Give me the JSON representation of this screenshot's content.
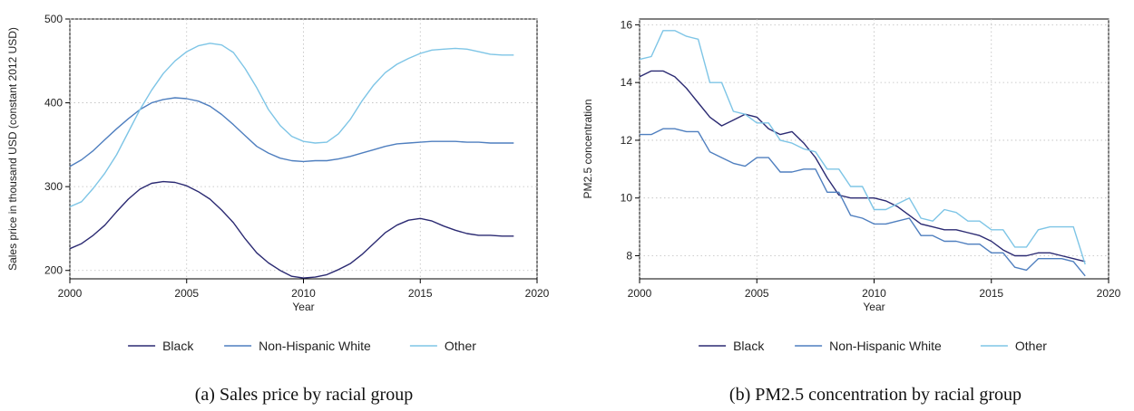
{
  "chart_data": [
    {
      "type": "line",
      "caption": "(a) Sales price by racial group",
      "xlabel": "Year",
      "ylabel": "Sales price in thousand USD (constant 2012 USD)",
      "xlim": [
        2000,
        2020
      ],
      "ylim": [
        190,
        500
      ],
      "xticks": [
        2000,
        2005,
        2010,
        2015,
        2020
      ],
      "yticks": [
        200,
        300,
        400,
        500
      ],
      "grid": true,
      "legend_position": "bottom",
      "series": [
        {
          "name": "Black",
          "color": "#2b2a72",
          "x": [
            2000,
            2000.5,
            2001,
            2001.5,
            2002,
            2002.5,
            2003,
            2003.5,
            2004,
            2004.5,
            2005,
            2005.5,
            2006,
            2006.5,
            2007,
            2007.5,
            2008,
            2008.5,
            2009,
            2009.5,
            2010,
            2010.5,
            2011,
            2011.5,
            2012,
            2012.5,
            2013,
            2013.5,
            2014,
            2014.5,
            2015,
            2015.5,
            2016,
            2016.5,
            2017,
            2017.5,
            2018,
            2018.5,
            2019
          ],
          "values": [
            226,
            232,
            242,
            254,
            270,
            285,
            297,
            304,
            306,
            305,
            301,
            294,
            285,
            272,
            257,
            238,
            221,
            209,
            200,
            193,
            191,
            192,
            195,
            201,
            208,
            219,
            232,
            245,
            254,
            260,
            262,
            259,
            253,
            248,
            244,
            242,
            242,
            241,
            241
          ]
        },
        {
          "name": "Non-Hispanic White",
          "color": "#4f7fbf",
          "x": [
            2000,
            2000.5,
            2001,
            2001.5,
            2002,
            2002.5,
            2003,
            2003.5,
            2004,
            2004.5,
            2005,
            2005.5,
            2006,
            2006.5,
            2007,
            2007.5,
            2008,
            2008.5,
            2009,
            2009.5,
            2010,
            2010.5,
            2011,
            2011.5,
            2012,
            2012.5,
            2013,
            2013.5,
            2014,
            2014.5,
            2015,
            2015.5,
            2016,
            2016.5,
            2017,
            2017.5,
            2018,
            2018.5,
            2019
          ],
          "values": [
            324,
            332,
            343,
            356,
            369,
            381,
            392,
            400,
            404,
            406,
            405,
            402,
            396,
            386,
            374,
            361,
            348,
            340,
            334,
            331,
            330,
            331,
            331,
            333,
            336,
            340,
            344,
            348,
            351,
            352,
            353,
            354,
            354,
            354,
            353,
            353,
            352,
            352,
            352
          ]
        },
        {
          "name": "Other",
          "color": "#7ec5e6",
          "x": [
            2000,
            2000.5,
            2001,
            2001.5,
            2002,
            2002.5,
            2003,
            2003.5,
            2004,
            2004.5,
            2005,
            2005.5,
            2006,
            2006.5,
            2007,
            2007.5,
            2008,
            2008.5,
            2009,
            2009.5,
            2010,
            2010.5,
            2011,
            2011.5,
            2012,
            2012.5,
            2013,
            2013.5,
            2014,
            2014.5,
            2015,
            2015.5,
            2016,
            2016.5,
            2017,
            2017.5,
            2018,
            2018.5,
            2019
          ],
          "values": [
            276,
            282,
            298,
            316,
            338,
            365,
            392,
            415,
            435,
            450,
            461,
            468,
            471,
            469,
            460,
            441,
            418,
            392,
            373,
            360,
            354,
            352,
            353,
            363,
            380,
            402,
            421,
            436,
            446,
            453,
            459,
            463,
            464,
            465,
            464,
            461,
            458,
            457,
            457
          ]
        }
      ]
    },
    {
      "type": "line",
      "caption": "(b) PM2.5 concentration by racial group",
      "xlabel": "Year",
      "ylabel": "PM2.5 concentration",
      "xlim": [
        2000,
        2020
      ],
      "ylim": [
        7.2,
        16.2
      ],
      "xticks": [
        2000,
        2005,
        2010,
        2015,
        2020
      ],
      "yticks": [
        8,
        10,
        12,
        14,
        16
      ],
      "grid": true,
      "legend_position": "bottom",
      "series": [
        {
          "name": "Black",
          "color": "#2b2a72",
          "x": [
            2000,
            2000.5,
            2001,
            2001.5,
            2002,
            2002.5,
            2003,
            2003.5,
            2004,
            2004.5,
            2005,
            2005.5,
            2006,
            2006.5,
            2007,
            2007.5,
            2008,
            2008.5,
            2009,
            2009.5,
            2010,
            2010.5,
            2011,
            2011.5,
            2012,
            2012.5,
            2013,
            2013.5,
            2014,
            2014.5,
            2015,
            2015.5,
            2016,
            2016.5,
            2017,
            2017.5,
            2018,
            2018.5,
            2019
          ],
          "values": [
            14.2,
            14.4,
            14.4,
            14.2,
            13.8,
            13.3,
            12.8,
            12.5,
            12.7,
            12.9,
            12.8,
            12.4,
            12.2,
            12.3,
            11.9,
            11.4,
            10.7,
            10.1,
            10.0,
            10.0,
            10.0,
            9.9,
            9.7,
            9.4,
            9.1,
            9.0,
            8.9,
            8.9,
            8.8,
            8.7,
            8.5,
            8.2,
            8.0,
            8.0,
            8.1,
            8.1,
            8.0,
            7.9,
            7.8
          ]
        },
        {
          "name": "Non-Hispanic White",
          "color": "#4f7fbf",
          "x": [
            2000,
            2000.5,
            2001,
            2001.5,
            2002,
            2002.5,
            2003,
            2003.5,
            2004,
            2004.5,
            2005,
            2005.5,
            2006,
            2006.5,
            2007,
            2007.5,
            2008,
            2008.5,
            2009,
            2009.5,
            2010,
            2010.5,
            2011,
            2011.5,
            2012,
            2012.5,
            2013,
            2013.5,
            2014,
            2014.5,
            2015,
            2015.5,
            2016,
            2016.5,
            2017,
            2017.5,
            2018,
            2018.5,
            2019
          ],
          "values": [
            12.2,
            12.2,
            12.4,
            12.4,
            12.3,
            12.3,
            11.6,
            11.4,
            11.2,
            11.1,
            11.4,
            11.4,
            10.9,
            10.9,
            11.0,
            11.0,
            10.2,
            10.2,
            9.4,
            9.3,
            9.1,
            9.1,
            9.2,
            9.3,
            8.7,
            8.7,
            8.5,
            8.5,
            8.4,
            8.4,
            8.1,
            8.1,
            7.6,
            7.5,
            7.9,
            7.9,
            7.9,
            7.8,
            7.3
          ]
        },
        {
          "name": "Other",
          "color": "#7ec5e6",
          "x": [
            2000,
            2000.5,
            2001,
            2001.5,
            2002,
            2002.5,
            2003,
            2003.5,
            2004,
            2004.5,
            2005,
            2005.5,
            2006,
            2006.5,
            2007,
            2007.5,
            2008,
            2008.5,
            2009,
            2009.5,
            2010,
            2010.5,
            2011,
            2011.5,
            2012,
            2012.5,
            2013,
            2013.5,
            2014,
            2014.5,
            2015,
            2015.5,
            2016,
            2016.5,
            2017,
            2017.5,
            2018,
            2018.5,
            2019
          ],
          "values": [
            14.8,
            14.9,
            15.8,
            15.8,
            15.6,
            15.5,
            14.0,
            14.0,
            13.0,
            12.9,
            12.6,
            12.6,
            12.0,
            11.9,
            11.7,
            11.6,
            11.0,
            11.0,
            10.4,
            10.4,
            9.6,
            9.6,
            9.8,
            10.0,
            9.3,
            9.2,
            9.6,
            9.5,
            9.2,
            9.2,
            8.9,
            8.9,
            8.3,
            8.3,
            8.9,
            9.0,
            9.0,
            9.0,
            7.7
          ]
        }
      ]
    }
  ]
}
